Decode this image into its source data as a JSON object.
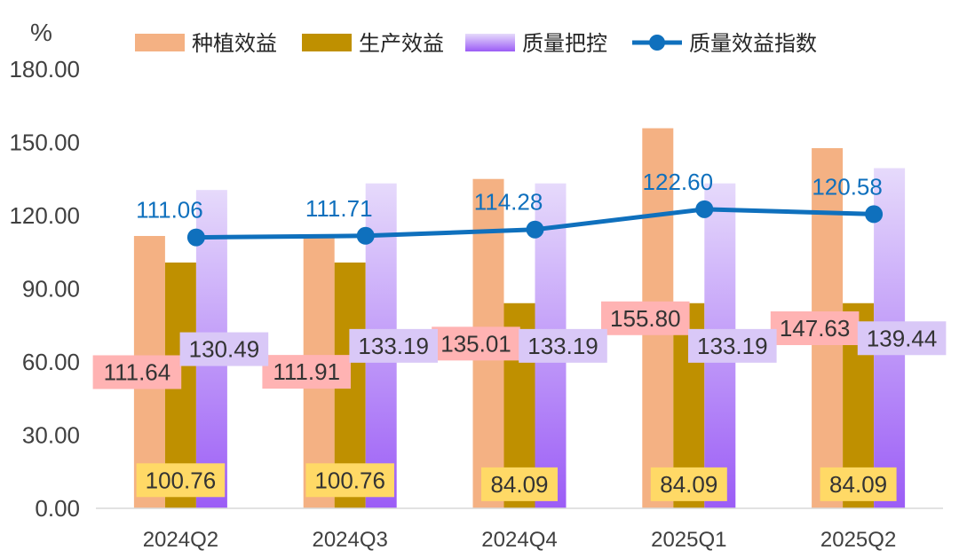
{
  "chart_data": {
    "type": "bar",
    "title": "",
    "unit_label": "%",
    "xlabel": "",
    "ylabel": "",
    "ylim": [
      0,
      180
    ],
    "y_ticks": [
      "0.00",
      "30.00",
      "60.00",
      "90.00",
      "120.00",
      "150.00",
      "180.00"
    ],
    "grid": false,
    "legend_position": "top",
    "categories": [
      "2024Q2",
      "2024Q3",
      "2024Q4",
      "2025Q1",
      "2025Q2"
    ],
    "series": [
      {
        "name": "种植效益",
        "type": "bar",
        "color": "#F4B183",
        "label_bg": "#FFB3B3",
        "values": [
          111.64,
          111.91,
          135.01,
          155.8,
          147.63
        ],
        "labels": [
          "111.64",
          "111.91",
          "135.01",
          "155.80",
          "147.63"
        ]
      },
      {
        "name": "生产效益",
        "type": "bar",
        "color": "#BF9000",
        "label_bg": "#FFD966",
        "values": [
          100.76,
          100.76,
          84.09,
          84.09,
          84.09
        ],
        "labels": [
          "100.76",
          "100.76",
          "84.09",
          "84.09",
          "84.09"
        ]
      },
      {
        "name": "质量把控",
        "type": "bar",
        "color_top": "#E6DAFB",
        "color_bottom": "#9B5CF6",
        "label_bg": "#D9C8F7",
        "values": [
          130.49,
          133.19,
          133.19,
          133.19,
          139.44
        ],
        "labels": [
          "130.49",
          "133.19",
          "133.19",
          "133.19",
          "139.44"
        ]
      },
      {
        "name": "质量效益指数",
        "type": "line",
        "color": "#0F70BD",
        "values": [
          111.06,
          111.71,
          114.28,
          122.6,
          120.58
        ],
        "labels": [
          "111.06",
          "111.71",
          "114.28",
          "122.60",
          "120.58"
        ]
      }
    ]
  }
}
